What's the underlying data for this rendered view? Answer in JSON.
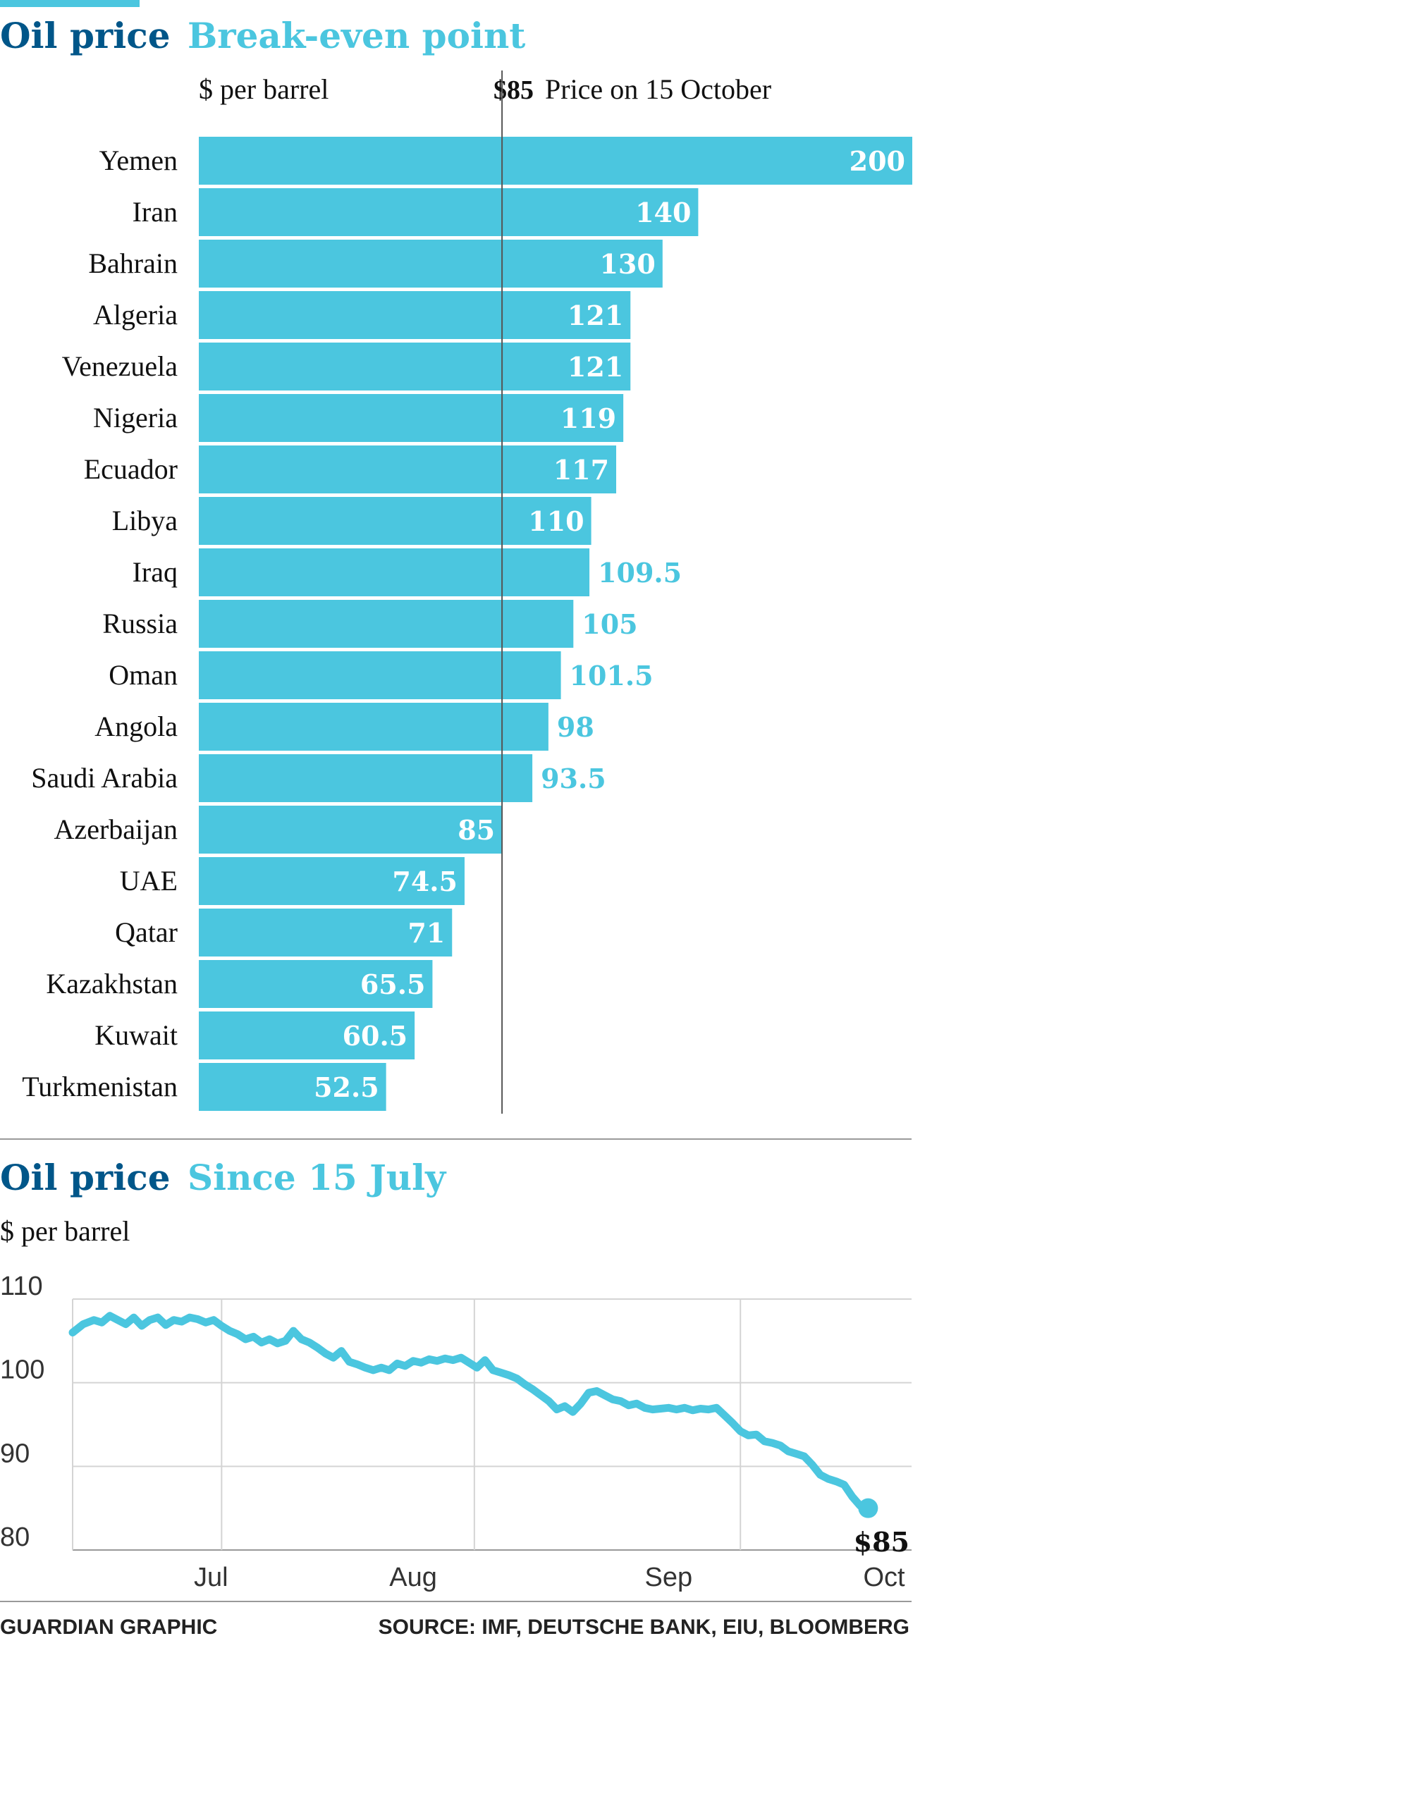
{
  "chart1": {
    "title_part1": "Oil price",
    "title_part2": "Break-even point",
    "unit_label": "$ per barrel",
    "reference_value_label": "$85",
    "reference_text": "Price on 15 October",
    "colors": {
      "bar": "#4bc6df",
      "title_dark": "#005689",
      "title_light": "#4bc6df"
    }
  },
  "chart2": {
    "title_part1": "Oil price",
    "title_part2": "Since 15 July",
    "unit_label": "$ per barrel",
    "end_label": "$85"
  },
  "footer": {
    "credit": "GUARDIAN GRAPHIC",
    "source": "SOURCE: IMF, DEUTSCHE BANK, EIU, BLOOMBERG"
  },
  "chart_data": [
    {
      "type": "bar",
      "orientation": "horizontal",
      "title": "Oil price Break-even point",
      "xlabel": "$ per barrel",
      "reference_line": 85,
      "categories": [
        "Yemen",
        "Iran",
        "Bahrain",
        "Algeria",
        "Venezuela",
        "Nigeria",
        "Ecuador",
        "Libya",
        "Iraq",
        "Russia",
        "Oman",
        "Angola",
        "Saudi Arabia",
        "Azerbaijan",
        "UAE",
        "Qatar",
        "Kazakhstan",
        "Kuwait",
        "Turkmenistan"
      ],
      "values": [
        200,
        140,
        130,
        121,
        121,
        119,
        117,
        110,
        109.5,
        105,
        101.5,
        98,
        93.5,
        85,
        74.5,
        71,
        65.5,
        60.5,
        52.5
      ],
      "value_labels": [
        "200",
        "140",
        "130",
        "121",
        "121",
        "119",
        "117",
        "110",
        "109.5",
        "105",
        "101.5",
        "98",
        "93.5",
        "85",
        "74.5",
        "71",
        "65.5",
        "60.5",
        "52.5"
      ],
      "xlim": [
        0,
        200
      ]
    },
    {
      "type": "line",
      "title": "Oil price Since 15 July",
      "ylabel": "$ per barrel",
      "ylim": [
        80,
        110
      ],
      "yticks": [
        "110",
        "100",
        "90",
        "80"
      ],
      "month_labels": [
        "Jul",
        "Aug",
        "Sep",
        "Oct"
      ],
      "month_positions": [
        5.2,
        12.8,
        22.4,
        30.5
      ],
      "x_dividers": [
        5.6,
        15.1,
        25.1
      ],
      "x_range": [
        0,
        30.5
      ],
      "series": [
        {
          "name": "Oil price",
          "x": [
            0,
            0.4,
            0.8,
            1.1,
            1.4,
            1.7,
            2.0,
            2.3,
            2.6,
            2.9,
            3.2,
            3.5,
            3.8,
            4.1,
            4.4,
            4.7,
            5.0,
            5.3,
            5.6,
            5.9,
            6.2,
            6.5,
            6.8,
            7.1,
            7.4,
            7.7,
            8.0,
            8.3,
            8.6,
            8.9,
            9.2,
            9.5,
            9.8,
            10.1,
            10.4,
            10.7,
            11.0,
            11.3,
            11.6,
            11.9,
            12.2,
            12.5,
            12.8,
            13.1,
            13.4,
            13.7,
            14.0,
            14.3,
            14.6,
            14.9,
            15.2,
            15.5,
            15.8,
            16.1,
            16.4,
            16.7,
            17.0,
            17.3,
            17.6,
            17.9,
            18.2,
            18.5,
            18.8,
            19.1,
            19.4,
            19.7,
            20.0,
            20.3,
            20.6,
            20.9,
            21.2,
            21.5,
            21.8,
            22.1,
            22.4,
            22.7,
            23.0,
            23.3,
            23.6,
            23.9,
            24.2,
            24.5,
            24.8,
            25.1,
            25.4,
            25.7,
            26.0,
            26.3,
            26.6,
            26.9,
            27.2,
            27.5,
            27.8,
            28.1,
            28.4,
            28.7,
            29.0,
            29.3,
            29.6,
            29.9
          ],
          "y": [
            106,
            107,
            107.5,
            107.2,
            108,
            107.5,
            107,
            107.8,
            106.8,
            107.5,
            107.8,
            106.9,
            107.5,
            107.3,
            107.8,
            107.6,
            107.2,
            107.5,
            106.8,
            106.2,
            105.8,
            105.2,
            105.5,
            104.8,
            105.2,
            104.7,
            105,
            106.2,
            105.2,
            104.8,
            104.2,
            103.5,
            103,
            103.8,
            102.5,
            102.2,
            101.8,
            101.5,
            101.8,
            101.5,
            102.3,
            102,
            102.6,
            102.4,
            102.8,
            102.6,
            102.9,
            102.7,
            103,
            102.4,
            101.8,
            102.7,
            101.5,
            101.2,
            100.9,
            100.5,
            99.8,
            99.2,
            98.5,
            97.8,
            96.8,
            97.2,
            96.5,
            97.5,
            98.8,
            99,
            98.5,
            98,
            97.8,
            97.3,
            97.5,
            97,
            96.8,
            96.9,
            97,
            96.8,
            97,
            96.7,
            96.9,
            96.8,
            97,
            96.1,
            95.2,
            94.2,
            93.7,
            93.8,
            93,
            92.8,
            92.5,
            91.8,
            91.5,
            91.2,
            90.2,
            89,
            88.5,
            88.2,
            87.8,
            86.4,
            85.3,
            85
          ]
        }
      ]
    }
  ]
}
